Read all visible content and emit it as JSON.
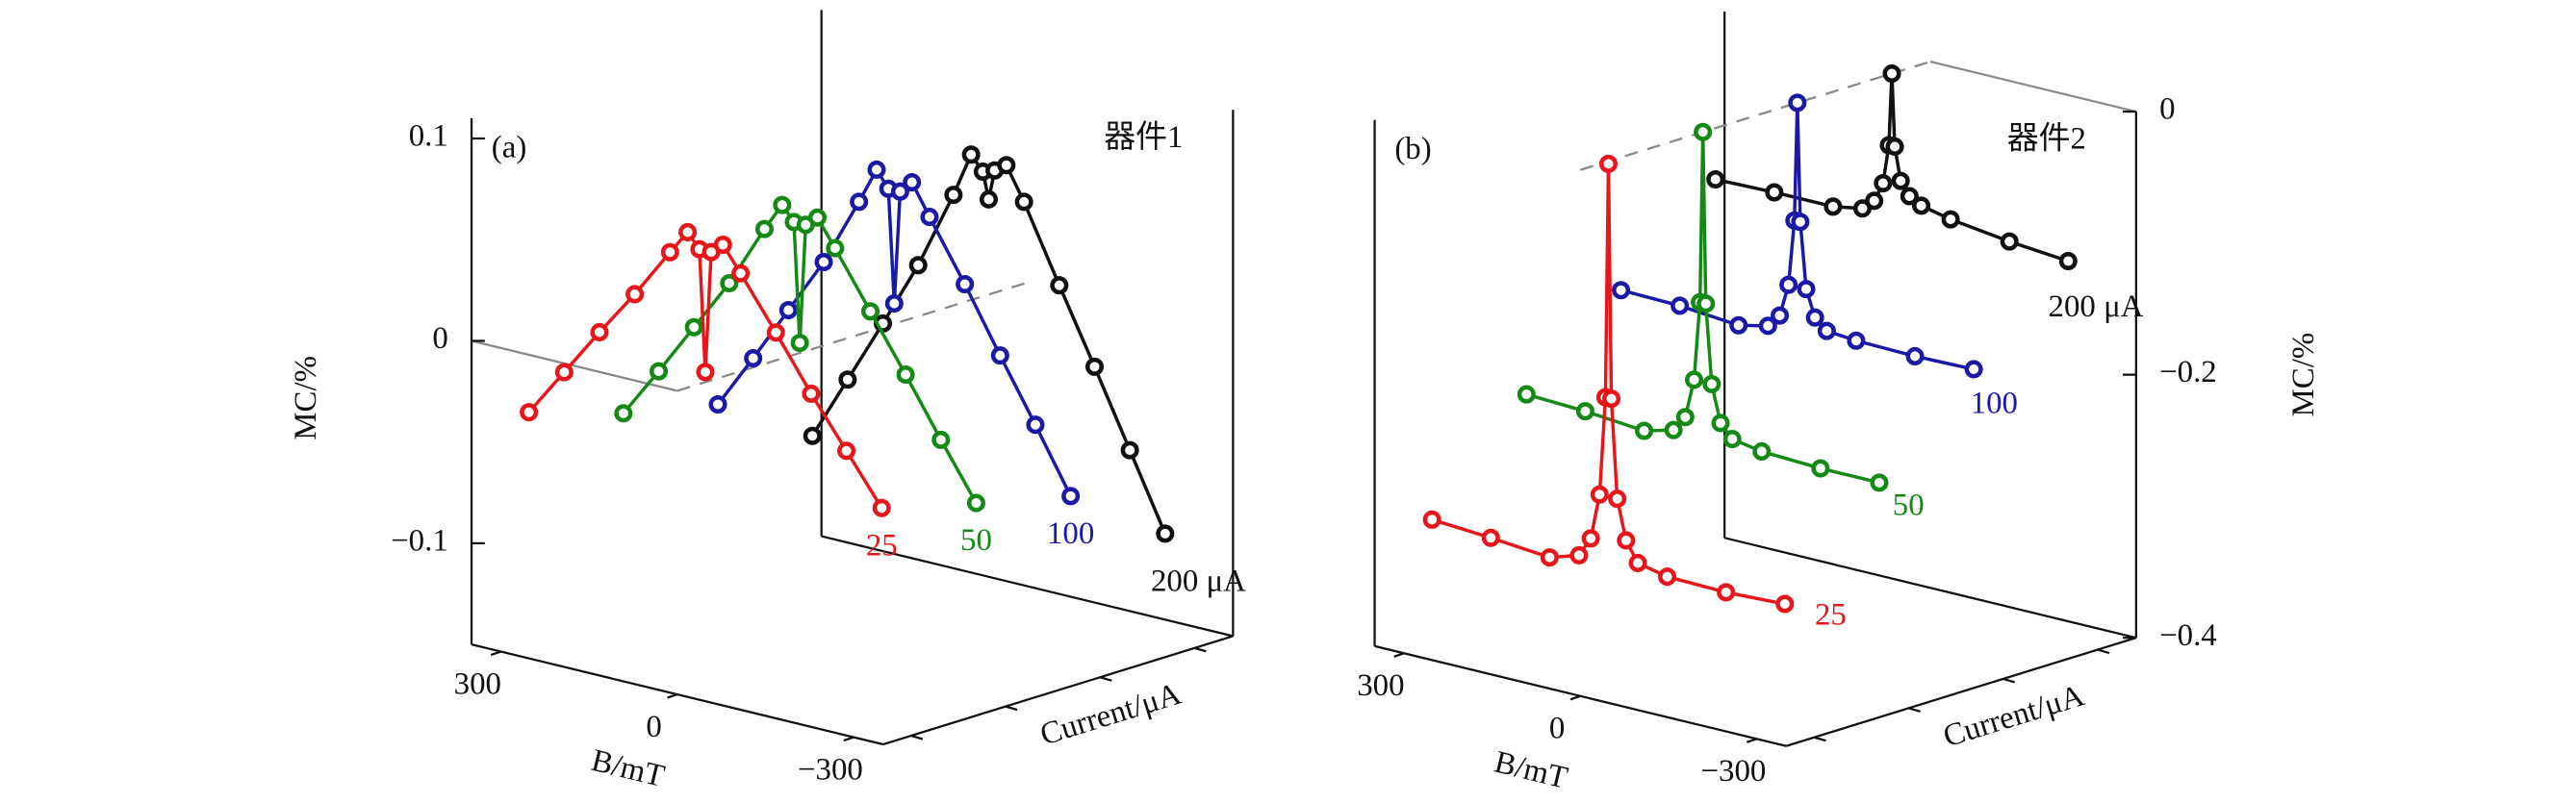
{
  "chart_data": [
    {
      "type": "waterfall3d",
      "panel_label": "(a)",
      "device_label": "器件1",
      "x_label": "B/mT",
      "y_label": "MC/%",
      "z_label": "Current/μA",
      "y_axis_side": "left",
      "xlim": [
        -350,
        350
      ],
      "xticks": [
        300,
        0,
        {
          "value": -300,
          "label": "−300"
        }
      ],
      "ylim": [
        -0.15,
        0.11
      ],
      "yticks": [
        0.1,
        0,
        {
          "value": -0.1,
          "label": "−0.1"
        }
      ],
      "x": [
        300,
        240,
        180,
        120,
        60,
        30,
        10,
        0,
        -10,
        -30,
        -60,
        -120,
        -180,
        -240,
        -300
      ],
      "series": [
        {
          "name": "25",
          "color": "#e8161b",
          "values": [
            -0.036,
            -0.012,
            0.012,
            0.035,
            0.06,
            0.072,
            0.065,
            0.005,
            0.065,
            0.07,
            0.058,
            0.033,
            0.007,
            -0.017,
            -0.041
          ]
        },
        {
          "name": "50",
          "color": "#148a14",
          "values": [
            -0.051,
            -0.026,
            0.0,
            0.026,
            0.057,
            0.071,
            0.064,
            0.005,
            0.064,
            0.069,
            0.056,
            0.029,
            0.002,
            -0.026,
            -0.053
          ]
        },
        {
          "name": "100",
          "color": "#1a1aa6",
          "values": [
            -0.061,
            -0.034,
            -0.006,
            0.022,
            0.056,
            0.074,
            0.066,
            0.01,
            0.066,
            0.072,
            0.057,
            0.028,
            -0.003,
            -0.033,
            -0.064
          ]
        },
        {
          "name": "200 μA",
          "color": "#111111",
          "values": [
            -0.091,
            -0.059,
            -0.027,
            0.006,
            0.045,
            0.067,
            0.06,
            0.047,
            0.062,
            0.066,
            0.05,
            0.013,
            -0.023,
            -0.06,
            -0.097
          ]
        }
      ]
    },
    {
      "type": "waterfall3d",
      "panel_label": "(b)",
      "device_label": "器件2",
      "x_label": "B/mT",
      "y_label": "MC/%",
      "z_label": "Current/μA",
      "y_axis_side": "right",
      "xlim": [
        -350,
        350
      ],
      "xticks": [
        300,
        0,
        {
          "value": -300,
          "label": "−300"
        }
      ],
      "ylim": [
        -0.4,
        0
      ],
      "yticks": [
        0,
        {
          "value": -0.2,
          "label": "−0.2"
        },
        {
          "value": -0.4,
          "label": "−0.4"
        }
      ],
      "x": [
        300,
        200,
        100,
        50,
        30,
        15,
        5,
        0,
        -5,
        -15,
        -30,
        -50,
        -100,
        -200,
        -300
      ],
      "series": [
        {
          "name": "25",
          "color": "#e8161b",
          "values": [
            -0.305,
            -0.308,
            -0.312,
            -0.305,
            -0.29,
            -0.255,
            -0.18,
            -0.002,
            -0.18,
            -0.255,
            -0.285,
            -0.3,
            -0.305,
            -0.306,
            -0.304
          ]
        },
        {
          "name": "50",
          "color": "#148a14",
          "values": [
            -0.232,
            -0.234,
            -0.238,
            -0.232,
            -0.22,
            -0.19,
            -0.13,
            0.0,
            -0.13,
            -0.19,
            -0.218,
            -0.228,
            -0.232,
            -0.234,
            -0.234
          ]
        },
        {
          "name": "100",
          "color": "#1a1aa6",
          "values": [
            -0.175,
            -0.176,
            -0.18,
            -0.175,
            -0.165,
            -0.14,
            -0.09,
            0.0,
            -0.09,
            -0.14,
            -0.16,
            -0.168,
            -0.17,
            -0.171,
            -0.17
          ]
        },
        {
          "name": "200 μA",
          "color": "#111111",
          "values": [
            -0.113,
            -0.112,
            -0.112,
            -0.108,
            -0.1,
            -0.085,
            -0.055,
            0.0,
            -0.055,
            -0.08,
            -0.09,
            -0.095,
            -0.1,
            -0.106,
            -0.11
          ]
        }
      ]
    }
  ]
}
